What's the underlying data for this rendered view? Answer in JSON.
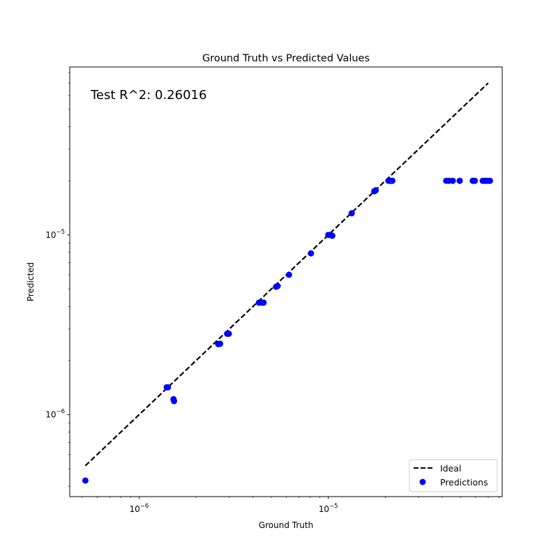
{
  "chart_data": {
    "type": "scatter",
    "title": "Ground Truth vs Predicted Values",
    "xlabel": "Ground Truth",
    "ylabel": "Predicted",
    "xscale": "log",
    "yscale": "log",
    "xlim": [
      4.3e-07,
      8.3e-05
    ],
    "ylim": [
      3.5e-07,
      8.6e-05
    ],
    "grid": false,
    "legend_placement": "lower-right",
    "annotation": "Test R^2: 0.26016",
    "x_ticks": [
      {
        "value": 1e-06,
        "base": "10",
        "exp": "−6"
      },
      {
        "value": 1e-05,
        "base": "10",
        "exp": "−5"
      }
    ],
    "y_ticks": [
      {
        "value": 1e-06,
        "base": "10",
        "exp": "−6"
      },
      {
        "value": 1e-05,
        "base": "10",
        "exp": "−5"
      }
    ],
    "series": [
      {
        "name": "Ideal",
        "kind": "line",
        "style": "dashed",
        "color": "#000000",
        "points": [
          [
            5.2e-07,
            5.2e-07
          ],
          [
            7e-05,
            7e-05
          ]
        ]
      },
      {
        "name": "Predictions",
        "kind": "scatter",
        "color": "#0000ff",
        "points": [
          [
            5.2e-07,
            4.3e-07
          ],
          [
            1.4e-06,
            1.42e-06
          ],
          [
            1.42e-06,
            1.42e-06
          ],
          [
            1.52e-06,
            1.22e-06
          ],
          [
            1.53e-06,
            1.19e-06
          ],
          [
            2.62e-06,
            2.47e-06
          ],
          [
            2.68e-06,
            2.48e-06
          ],
          [
            2.92e-06,
            2.82e-06
          ],
          [
            2.98e-06,
            2.82e-06
          ],
          [
            4.3e-06,
            4.2e-06
          ],
          [
            4.45e-06,
            4.2e-06
          ],
          [
            4.55e-06,
            4.2e-06
          ],
          [
            5.3e-06,
            5.15e-06
          ],
          [
            5.4e-06,
            5.2e-06
          ],
          [
            6.2e-06,
            6e-06
          ],
          [
            8.1e-06,
            7.9e-06
          ],
          [
            1e-05,
            1e-05
          ],
          [
            1.03e-05,
            1e-05
          ],
          [
            1.05e-05,
            9.9e-06
          ],
          [
            1.33e-05,
            1.32e-05
          ],
          [
            1.75e-05,
            1.75e-05
          ],
          [
            1.78e-05,
            1.77e-05
          ],
          [
            2.08e-05,
            2e-05
          ],
          [
            2.13e-05,
            2e-05
          ],
          [
            2.18e-05,
            2e-05
          ],
          [
            4.2e-05,
            2e-05
          ],
          [
            4.35e-05,
            2e-05
          ],
          [
            4.55e-05,
            2e-05
          ],
          [
            4.95e-05,
            2e-05
          ],
          [
            5.8e-05,
            2e-05
          ],
          [
            5.95e-05,
            2e-05
          ],
          [
            6.55e-05,
            2e-05
          ],
          [
            6.75e-05,
            2e-05
          ],
          [
            6.95e-05,
            2e-05
          ],
          [
            7.15e-05,
            2e-05
          ]
        ]
      }
    ]
  }
}
